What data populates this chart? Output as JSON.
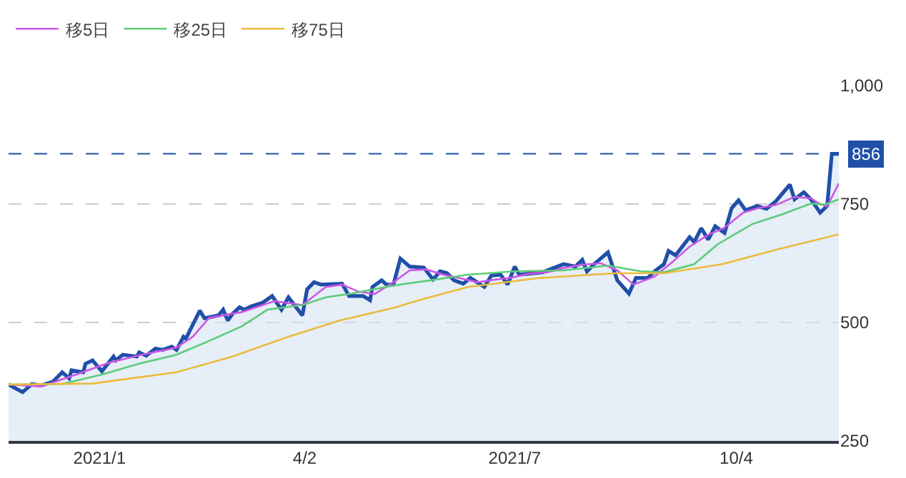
{
  "chart_data": {
    "type": "line",
    "xlim": [
      "2020-11-26",
      "2021-11-17"
    ],
    "xticks": [
      {
        "value": "2021-01-04",
        "label": "2021/1"
      },
      {
        "value": "2021-04-02",
        "label": "4/2"
      },
      {
        "value": "2021-07-01",
        "label": "2021/7"
      },
      {
        "value": "2021-10-04",
        "label": "10/4"
      }
    ],
    "ylim": [
      250,
      1000
    ],
    "yticks": [
      250,
      500,
      750,
      {
        "value": 1000,
        "label": "1,000"
      }
    ],
    "grid": "y",
    "legend": "top left",
    "marker": "none",
    "ref_lines": [
      {
        "axis": "y",
        "value": 856,
        "label": "856",
        "color": "#1f4fa8",
        "line_style": "dashed"
      }
    ],
    "series": [
      {
        "type": "area",
        "color": "#1f4fa8",
        "x": [
          "2020-11-26",
          "2020-12-02",
          "2020-12-06",
          "2020-12-10",
          "2020-12-15",
          "2020-12-19",
          "2020-12-22",
          "2020-12-23",
          "2020-12-28",
          "2020-12-29",
          "2021-01-01",
          "2021-01-05",
          "2021-01-10",
          "2021-01-11",
          "2021-01-14",
          "2021-01-20",
          "2021-01-21",
          "2021-01-24",
          "2021-01-28",
          "2021-01-31",
          "2021-02-04",
          "2021-02-06",
          "2021-02-09",
          "2021-02-10",
          "2021-02-16",
          "2021-02-18",
          "2021-02-24",
          "2021-02-26",
          "2021-02-28",
          "2021-03-02",
          "2021-03-05",
          "2021-03-07",
          "2021-03-10",
          "2021-03-15",
          "2021-03-19",
          "2021-03-23",
          "2021-03-26",
          "2021-04-01",
          "2021-04-03",
          "2021-04-06",
          "2021-04-09",
          "2021-04-18",
          "2021-04-21",
          "2021-04-27",
          "2021-04-30",
          "2021-05-01",
          "2021-05-05",
          "2021-05-07",
          "2021-05-10",
          "2021-05-13",
          "2021-05-17",
          "2021-05-23",
          "2021-05-27",
          "2021-05-30",
          "2021-06-02",
          "2021-06-05",
          "2021-06-09",
          "2021-06-12",
          "2021-06-18",
          "2021-06-21",
          "2021-06-25",
          "2021-06-28",
          "2021-07-01",
          "2021-07-03",
          "2021-07-13",
          "2021-07-22",
          "2021-07-27",
          "2021-07-30",
          "2021-08-01",
          "2021-08-04",
          "2021-08-10",
          "2021-08-13",
          "2021-08-14",
          "2021-08-19",
          "2021-08-22",
          "2021-08-27",
          "2021-08-30",
          "2021-09-03",
          "2021-09-05",
          "2021-09-08",
          "2021-09-14",
          "2021-09-16",
          "2021-09-19",
          "2021-09-22",
          "2021-09-25",
          "2021-09-29",
          "2021-10-02",
          "2021-10-05",
          "2021-10-08",
          "2021-10-13",
          "2021-10-17",
          "2021-10-21",
          "2021-10-27",
          "2021-10-29",
          "2021-11-02",
          "2021-11-05",
          "2021-11-09",
          "2021-11-12",
          "2021-11-14",
          "2021-11-17"
        ],
        "values": [
          369,
          353,
          370,
          367,
          375,
          395,
          382,
          399,
          395,
          413,
          420,
          397,
          428,
          420,
          432,
          428,
          437,
          430,
          445,
          442,
          449,
          442,
          470,
          466,
          525,
          509,
          515,
          527,
          504,
          518,
          532,
          527,
          534,
          542,
          556,
          527,
          553,
          515,
          570,
          585,
          580,
          582,
          556,
          556,
          547,
          575,
          589,
          580,
          580,
          635,
          618,
          616,
          591,
          608,
          604,
          589,
          582,
          594,
          575,
          599,
          601,
          580,
          618,
          601,
          606,
          623,
          618,
          632,
          608,
          623,
          648,
          604,
          589,
          561,
          594,
          594,
          608,
          623,
          651,
          642,
          680,
          670,
          699,
          675,
          703,
          689,
          741,
          758,
          737,
          746,
          740,
          756,
          791,
          760,
          775,
          760,
          732,
          746,
          856,
          856
        ]
      },
      {
        "name": "移5日",
        "color": "#cc55e6",
        "x": [
          "2020-11-26",
          "2020-12-10",
          "2020-12-25",
          "2021-01-08",
          "2021-01-22",
          "2021-02-06",
          "2021-02-13",
          "2021-02-20",
          "2021-03-06",
          "2021-03-20",
          "2021-04-01",
          "2021-04-11",
          "2021-04-18",
          "2021-04-25",
          "2021-05-02",
          "2021-05-10",
          "2021-05-17",
          "2021-05-24",
          "2021-06-01",
          "2021-06-08",
          "2021-06-15",
          "2021-06-22",
          "2021-06-30",
          "2021-07-07",
          "2021-07-15",
          "2021-07-22",
          "2021-07-30",
          "2021-08-07",
          "2021-08-14",
          "2021-08-21",
          "2021-08-30",
          "2021-09-06",
          "2021-09-14",
          "2021-09-22",
          "2021-09-29",
          "2021-10-07",
          "2021-10-14",
          "2021-10-21",
          "2021-10-29",
          "2021-11-05",
          "2021-11-09",
          "2021-11-12",
          "2021-11-17"
        ],
        "values": [
          369,
          365,
          390,
          415,
          432,
          447,
          470,
          510,
          522,
          545,
          537,
          575,
          580,
          565,
          560,
          585,
          610,
          612,
          600,
          593,
          585,
          590,
          595,
          603,
          606,
          615,
          622,
          625,
          610,
          580,
          597,
          625,
          660,
          685,
          700,
          732,
          742,
          748,
          765,
          762,
          750,
          745,
          794
        ]
      },
      {
        "name": "移25日",
        "color": "#5ccc78",
        "x": [
          "2020-11-26",
          "2020-12-19",
          "2021-01-05",
          "2021-01-21",
          "2021-02-06",
          "2021-02-20",
          "2021-03-06",
          "2021-03-17",
          "2021-04-01",
          "2021-04-11",
          "2021-04-22",
          "2021-05-10",
          "2021-05-26",
          "2021-06-11",
          "2021-07-01",
          "2021-07-22",
          "2021-08-10",
          "2021-08-24",
          "2021-09-03",
          "2021-09-16",
          "2021-09-26",
          "2021-10-11",
          "2021-10-23",
          "2021-11-05",
          "2021-11-11",
          "2021-11-17"
        ],
        "values": [
          369,
          370,
          390,
          413,
          432,
          461,
          492,
          527,
          537,
          553,
          561,
          578,
          589,
          601,
          608,
          610,
          620,
          608,
          606,
          623,
          665,
          708,
          727,
          751,
          749,
          760
        ]
      },
      {
        "name": "移75日",
        "color": "#ebbb3c",
        "x": [
          "2020-11-26",
          "2021-01-01",
          "2021-02-06",
          "2021-03-02",
          "2021-03-26",
          "2021-04-17",
          "2021-05-11",
          "2021-05-21",
          "2021-06-11",
          "2021-07-12",
          "2021-08-13",
          "2021-09-03",
          "2021-09-28",
          "2021-10-23",
          "2021-11-17"
        ],
        "values": [
          369,
          371,
          395,
          428,
          470,
          504,
          532,
          547,
          575,
          594,
          604,
          604,
          623,
          656,
          686
        ]
      }
    ]
  }
}
